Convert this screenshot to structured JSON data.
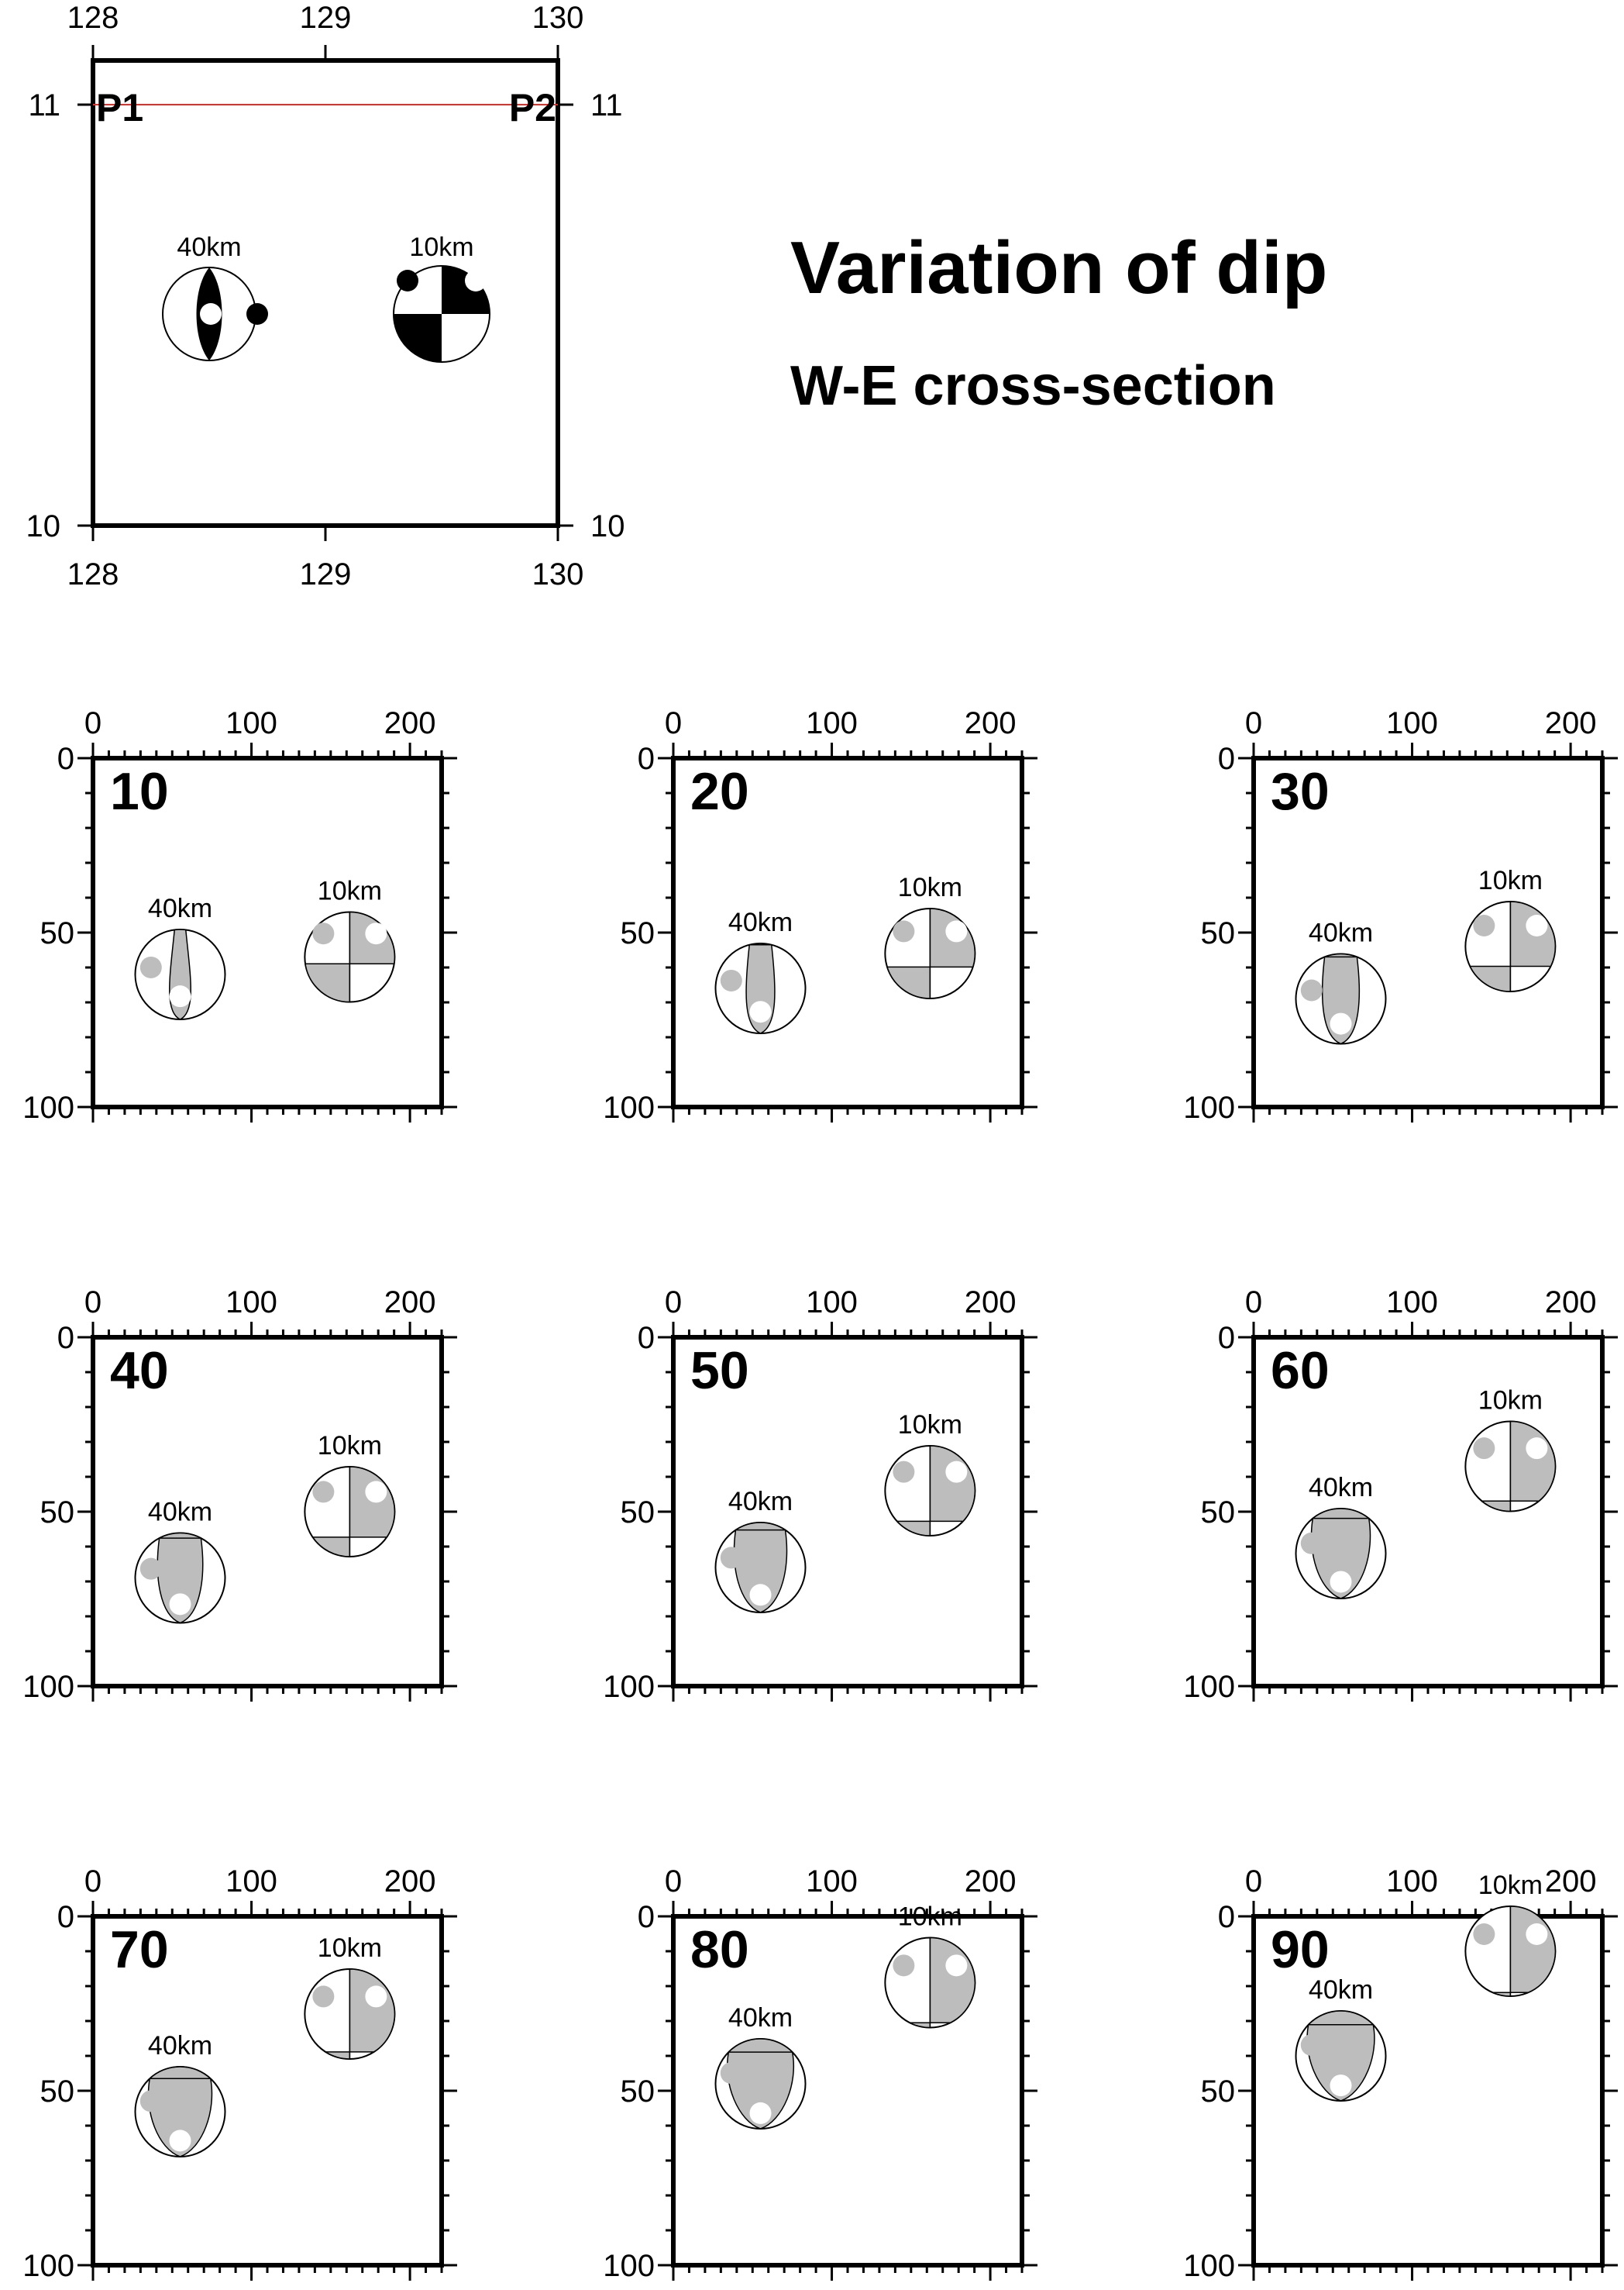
{
  "title": "Variation of dip",
  "subtitle": "W-E cross-section",
  "colors": {
    "compression_map": "#000000",
    "compression_section": "#bdbdbd",
    "profile_line": "#e0302a",
    "dilatation": "#ffffff"
  },
  "map": {
    "x_ticks": [
      "128",
      "129",
      "130"
    ],
    "y_ticks": [
      "11",
      "10"
    ],
    "profile_start": "P1",
    "profile_end": "P2",
    "events": [
      {
        "label": "40km",
        "lon": 128.5,
        "lat": 10.5,
        "mechanism": "normal"
      },
      {
        "label": "10km",
        "lon": 129.5,
        "lat": 10.5,
        "mechanism": "strike-slip"
      }
    ]
  },
  "sections": {
    "x_ticks": [
      "0",
      "100",
      "200"
    ],
    "y_ticks": [
      "0",
      "50",
      "100"
    ],
    "panels": [
      {
        "dip": "10",
        "events": [
          {
            "label": "40km",
            "distance": 55,
            "depth": 62
          },
          {
            "label": "10km",
            "distance": 162,
            "depth": 57
          }
        ]
      },
      {
        "dip": "20",
        "events": [
          {
            "label": "40km",
            "distance": 55,
            "depth": 66
          },
          {
            "label": "10km",
            "distance": 162,
            "depth": 56
          }
        ]
      },
      {
        "dip": "30",
        "events": [
          {
            "label": "40km",
            "distance": 55,
            "depth": 69
          },
          {
            "label": "10km",
            "distance": 162,
            "depth": 54
          }
        ]
      },
      {
        "dip": "40",
        "events": [
          {
            "label": "40km",
            "distance": 55,
            "depth": 69
          },
          {
            "label": "10km",
            "distance": 162,
            "depth": 50
          }
        ]
      },
      {
        "dip": "50",
        "events": [
          {
            "label": "40km",
            "distance": 55,
            "depth": 66
          },
          {
            "label": "10km",
            "distance": 162,
            "depth": 44
          }
        ]
      },
      {
        "dip": "60",
        "events": [
          {
            "label": "40km",
            "distance": 55,
            "depth": 62
          },
          {
            "label": "10km",
            "distance": 162,
            "depth": 37
          }
        ]
      },
      {
        "dip": "70",
        "events": [
          {
            "label": "40km",
            "distance": 55,
            "depth": 56
          },
          {
            "label": "10km",
            "distance": 162,
            "depth": 28
          }
        ]
      },
      {
        "dip": "80",
        "events": [
          {
            "label": "40km",
            "distance": 55,
            "depth": 48
          },
          {
            "label": "10km",
            "distance": 162,
            "depth": 19
          }
        ]
      },
      {
        "dip": "90",
        "events": [
          {
            "label": "40km",
            "distance": 55,
            "depth": 40
          },
          {
            "label": "10km",
            "distance": 162,
            "depth": 10
          }
        ]
      }
    ]
  }
}
